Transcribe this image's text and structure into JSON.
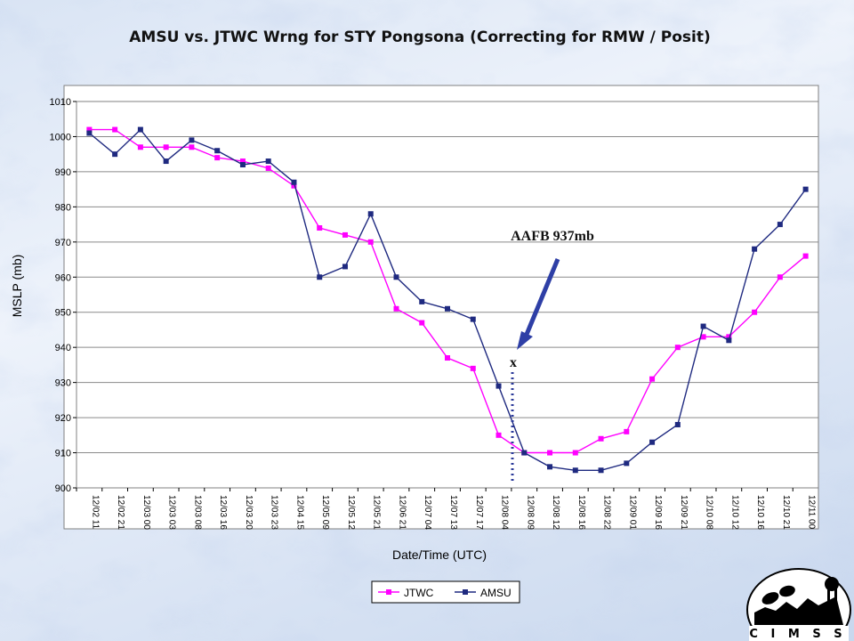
{
  "chart_data": {
    "type": "line",
    "title": "AMSU vs. JTWC Wrng for STY Pongsona (Correcting for RMW / Posit)",
    "xlabel": "Date/Time (UTC)",
    "ylabel": "MSLP (mb)",
    "ylim": [
      900,
      1010
    ],
    "yticks": [
      900,
      910,
      920,
      930,
      940,
      950,
      960,
      970,
      980,
      990,
      1000,
      1010
    ],
    "grid": "horizontal",
    "legend_position": "bottom",
    "categories": [
      "12/02 11",
      "12/02 21",
      "12/03 00",
      "12/03 03",
      "12/03 08",
      "12/03 16",
      "12/03 20",
      "12/03 23",
      "12/04 15",
      "12/05 09",
      "12/05 12",
      "12/05 21",
      "12/06 21",
      "12/07 04",
      "12/07 13",
      "12/07 17",
      "12/08 04",
      "12/08 09",
      "12/08 12",
      "12/08 16",
      "12/08 22",
      "12/09 01",
      "12/09 16",
      "12/09 21",
      "12/10 08",
      "12/10 12",
      "12/10 16",
      "12/10 21",
      "12/11 00"
    ],
    "series": [
      {
        "name": "JTWC",
        "color": "#ff00ff",
        "marker": "square",
        "values": [
          1002,
          1002,
          997,
          997,
          997,
          994,
          993,
          991,
          986,
          974,
          972,
          970,
          951,
          947,
          937,
          934,
          915,
          910,
          910,
          910,
          914,
          916,
          931,
          940,
          943,
          943,
          950,
          960,
          966
        ]
      },
      {
        "name": "AMSU",
        "color": "#1f2a80",
        "marker": "square",
        "values": [
          1001,
          995,
          1002,
          993,
          999,
          996,
          992,
          993,
          987,
          960,
          963,
          978,
          960,
          953,
          951,
          948,
          929,
          910,
          906,
          905,
          905,
          907,
          913,
          918,
          946,
          942,
          968,
          975,
          985
        ]
      }
    ],
    "annotation": {
      "text": "AAFB 937mb",
      "marker_text": "x",
      "x_category": "12/08 09"
    }
  },
  "logo": {
    "text": "C I M S S"
  }
}
